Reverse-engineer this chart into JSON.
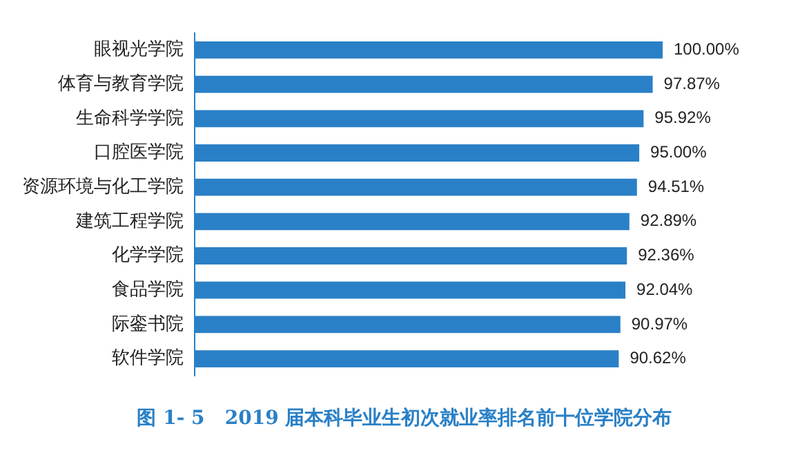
{
  "chart_data": {
    "type": "bar",
    "orientation": "horizontal",
    "title": "图 1- 5   2019 届本科毕业生初次就业率排名前十位学院分布",
    "categories": [
      "眼视光学院",
      "体育与教育学院",
      "生命科学学院",
      "口腔医学院",
      "资源环境与化工学院",
      "建筑工程学院",
      "化学学院",
      "食品学院",
      "际銮书院",
      "软件学院"
    ],
    "values": [
      100,
      97.87,
      95.92,
      95.0,
      94.51,
      92.89,
      92.36,
      92.04,
      90.97,
      90.62
    ],
    "value_labels": [
      "100.00%",
      "97.87%",
      "95.92%",
      "95.00%",
      "94.51%",
      "92.89%",
      "92.36%",
      "92.04%",
      "90.97%",
      "90.62%"
    ],
    "color": "#2a80c6",
    "xlim": [
      0,
      100
    ],
    "legend": false
  }
}
